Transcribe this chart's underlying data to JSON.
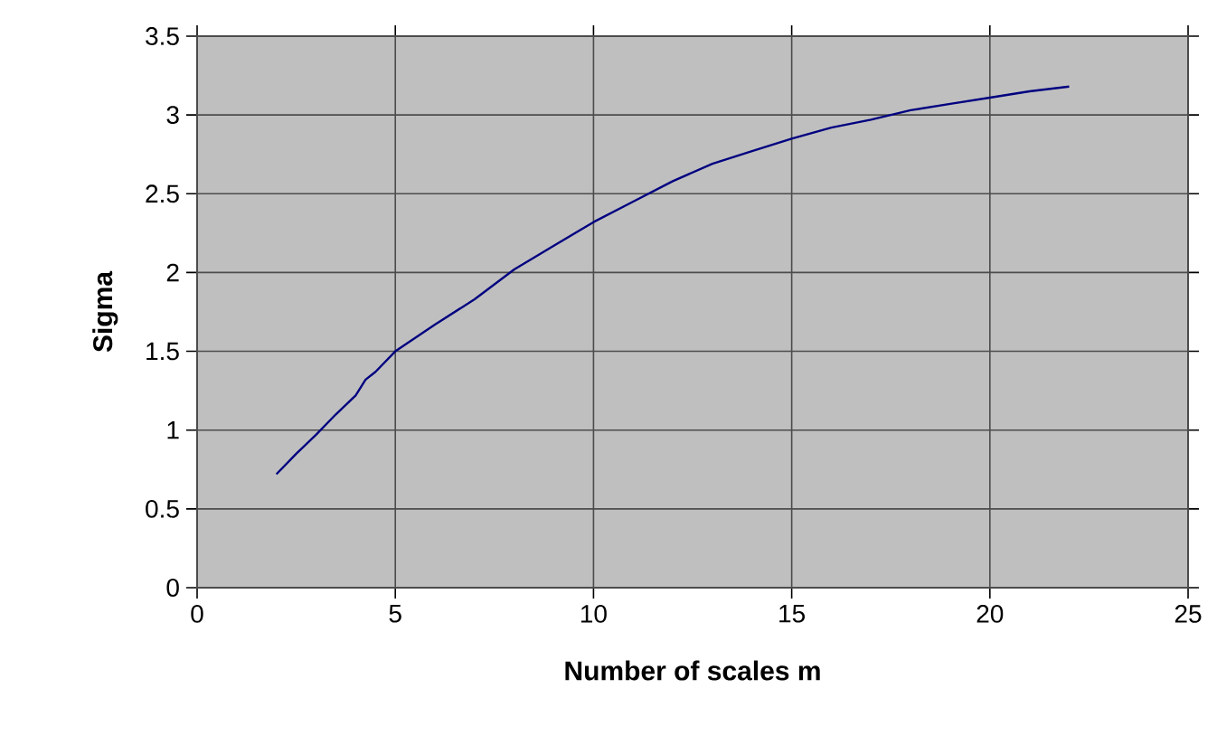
{
  "chart_data": {
    "type": "line",
    "xlabel": "Number of scales m",
    "ylabel": "Sigma",
    "xlim": [
      0,
      25
    ],
    "ylim": [
      0,
      3.5
    ],
    "xticks": [
      0,
      5,
      10,
      15,
      20,
      25
    ],
    "yticks": [
      0,
      0.5,
      1,
      1.5,
      2,
      2.5,
      3,
      3.5
    ],
    "grid": true,
    "marker": "none",
    "line_style": "solid",
    "series": [
      {
        "color": "#000080",
        "x": [
          2,
          2.5,
          3,
          3.5,
          4,
          4.25,
          4.5,
          5,
          6,
          7,
          8,
          9,
          10,
          11,
          12,
          13,
          14,
          15,
          16,
          17,
          18,
          19,
          20,
          21,
          22
        ],
        "values": [
          0.72,
          0.85,
          0.97,
          1.1,
          1.22,
          1.32,
          1.37,
          1.5,
          1.67,
          1.83,
          2.02,
          2.17,
          2.32,
          2.45,
          2.58,
          2.69,
          2.77,
          2.85,
          2.92,
          2.97,
          3.03,
          3.07,
          3.11,
          3.15,
          3.18
        ]
      }
    ]
  }
}
